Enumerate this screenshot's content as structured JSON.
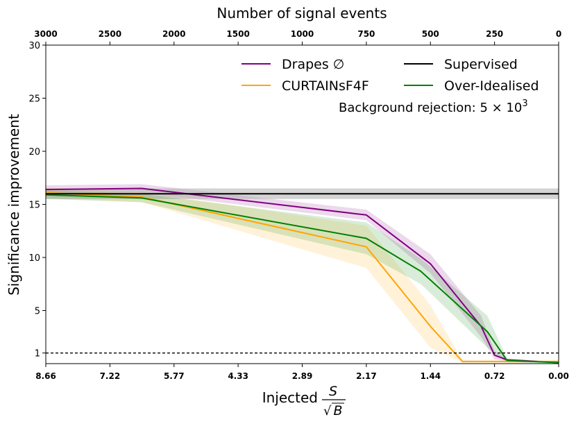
{
  "chart_data": {
    "type": "line",
    "title": "",
    "xlabel": "Injected",
    "xlabel_fraction": {
      "numerator": "S",
      "denominator": "B"
    },
    "x2label": "Number of signal events",
    "ylabel": "Significance improvement",
    "xlim": [
      8.66,
      0.0
    ],
    "ylim": [
      0,
      30
    ],
    "yticks": [
      1,
      5,
      10,
      15,
      20,
      25,
      30
    ],
    "xticks": [
      8.66,
      7.22,
      5.77,
      4.33,
      2.89,
      2.17,
      1.44,
      0.72,
      0.0
    ],
    "xtick_labels": [
      "8.66",
      "7.22",
      "5.77",
      "4.33",
      "2.89",
      "2.17",
      "1.44",
      "0.72",
      "0.00"
    ],
    "x2ticks": [
      3000,
      2500,
      2000,
      1500,
      1000,
      750,
      500,
      250,
      0
    ],
    "x2tick_labels": [
      "3000",
      "2500",
      "2000",
      "1500",
      "1000",
      "750",
      "500",
      "250",
      "0"
    ],
    "reference_line": {
      "y": 1,
      "style": "dashed",
      "color": "#000000"
    },
    "annotation": {
      "prefix": "Background rejection: ",
      "mantissa": "5 × 10",
      "exponent": "3"
    },
    "legend": {
      "placement": "top-right",
      "columns": 2
    },
    "series": [
      {
        "name": "Drapes ∅",
        "color": "#800080",
        "x": [
          8.66,
          6.5,
          2.17,
          1.44,
          0.87,
          0.72,
          0.58,
          0.0
        ],
        "y": [
          16.4,
          16.5,
          14.0,
          9.4,
          3.5,
          0.8,
          0.35,
          0.1
        ],
        "band": [
          0.4,
          0.4,
          0.5,
          0.9,
          1.0,
          0.4,
          0.1,
          0.05
        ]
      },
      {
        "name": "CURTAINsF4F",
        "color": "#ffa500",
        "x": [
          8.66,
          6.5,
          2.17,
          1.44,
          1.08,
          0.0
        ],
        "y": [
          16.1,
          15.7,
          11.0,
          3.5,
          0.2,
          0.2
        ],
        "band": [
          0.5,
          0.5,
          2.0,
          2.0,
          0.1,
          0.05
        ]
      },
      {
        "name": "Supervised",
        "color": "#000000",
        "x": [
          8.66,
          0.0
        ],
        "y": [
          16.0,
          16.0
        ],
        "band": [
          0.5,
          0.5
        ]
      },
      {
        "name": "Over-Idealised",
        "color": "#008000",
        "x": [
          8.66,
          6.5,
          2.17,
          1.55,
          0.8,
          0.58,
          0.0
        ],
        "y": [
          15.9,
          15.6,
          11.8,
          8.7,
          3.0,
          0.3,
          0.1
        ],
        "band": [
          0.4,
          0.4,
          1.5,
          1.2,
          1.5,
          0.2,
          0.05
        ]
      }
    ]
  }
}
